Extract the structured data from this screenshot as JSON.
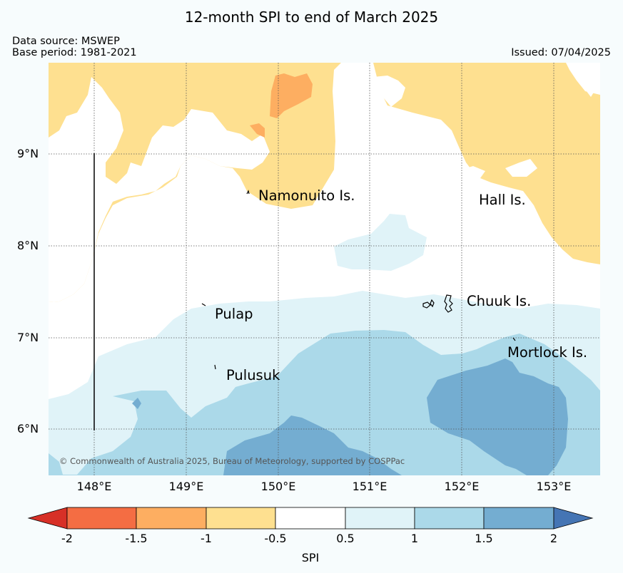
{
  "header": {
    "title": "12-month SPI to end of March 2025",
    "data_source": "Data source: MSWEP",
    "base_period": "Base period: 1981-2021",
    "issued": "Issued: 07/04/2025"
  },
  "map": {
    "lat_labels": [
      "9°N",
      "8°N",
      "7°N",
      "6°N"
    ],
    "lon_labels": [
      "148°E",
      "149°E",
      "150°E",
      "151°E",
      "152°E",
      "153°E"
    ],
    "places": [
      "Namonuito Is.",
      "Hall Is.",
      "Pulap",
      "Chuuk Is.",
      "Mortlock Is.",
      "Pulusuk"
    ],
    "copyright": "© Commonwealth of Australia 2025, Bureau of Meteorology, supported by COSPPac"
  },
  "colorbar": {
    "label": "SPI",
    "ticks": [
      "-2",
      "-1.5",
      "-1",
      "-0.5",
      "0.5",
      "1",
      "1.5",
      "2"
    ],
    "colors": {
      "below_-2": "#d73027",
      "-2_-1.5": "#f46d43",
      "-1.5_-1": "#fdae61",
      "-1_-0.5": "#fee090",
      "-0.5_0.5": "#ffffff",
      "0.5_1": "#e0f3f8",
      "1_1.5": "#abd9e9",
      "1.5_2": "#74add1",
      "above_2": "#4575b4"
    }
  }
}
